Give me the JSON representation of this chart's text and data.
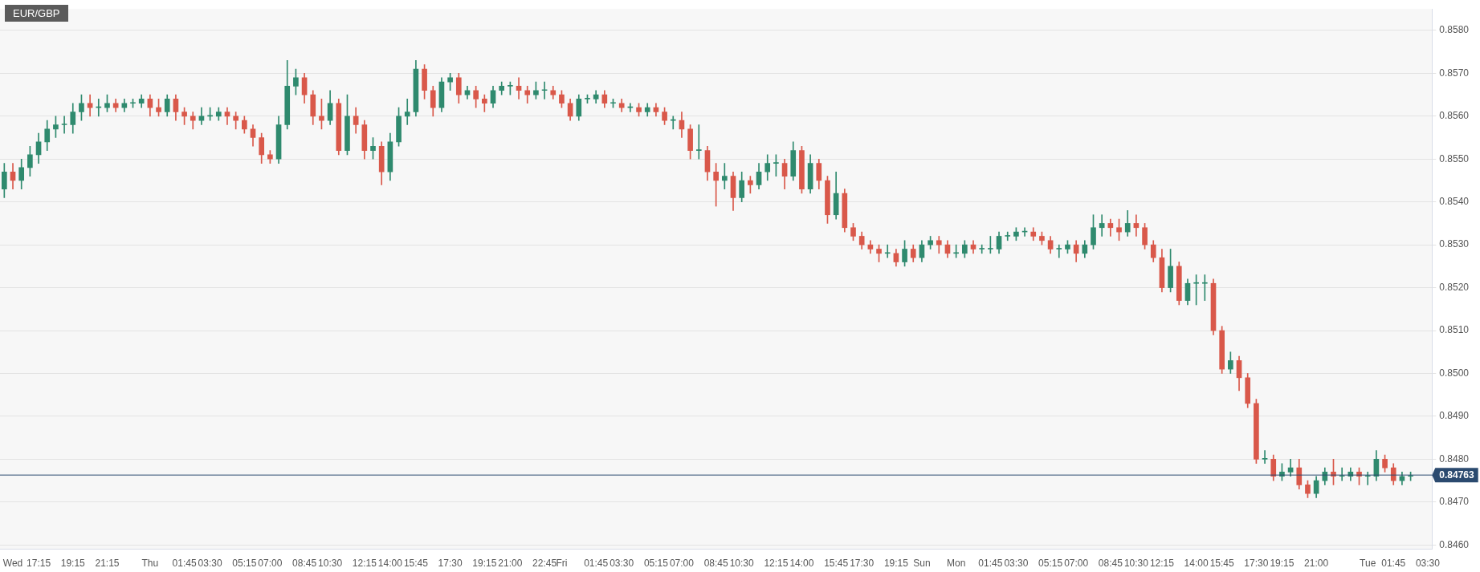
{
  "chart_data": {
    "type": "candlestick",
    "title": "EUR/GBP",
    "categories": [
      null,
      "Wed",
      null,
      null,
      "17:15",
      null,
      null,
      null,
      "19:15",
      null,
      null,
      null,
      "21:15",
      null,
      null,
      null,
      null,
      "Thu",
      null,
      null,
      null,
      "01:45",
      null,
      null,
      "03:30",
      null,
      null,
      null,
      "05:15",
      null,
      null,
      "07:00",
      null,
      null,
      null,
      "08:45",
      null,
      null,
      "10:30",
      null,
      null,
      null,
      "12:15",
      null,
      null,
      "14:00",
      null,
      null,
      "15:45",
      null,
      null,
      null,
      "17:30",
      null,
      null,
      null,
      "19:15",
      null,
      null,
      "21:00",
      null,
      null,
      null,
      "22:45",
      null,
      "Fri",
      null,
      null,
      null,
      "01:45",
      null,
      null,
      "03:30",
      null,
      null,
      null,
      "05:15",
      null,
      null,
      "07:00",
      null,
      null,
      null,
      "08:45",
      null,
      null,
      "10:30",
      null,
      null,
      null,
      "12:15",
      null,
      null,
      "14:00",
      null,
      null,
      null,
      "15:45",
      null,
      null,
      "17:30",
      null,
      null,
      null,
      "19:15",
      null,
      null,
      "Sun",
      null,
      null,
      null,
      "Mon",
      null,
      null,
      null,
      "01:45",
      null,
      null,
      "03:30",
      null,
      null,
      null,
      "05:15",
      null,
      null,
      "07:00",
      null,
      null,
      null,
      "08:45",
      null,
      null,
      "10:30",
      null,
      null,
      "12:15",
      null,
      null,
      null,
      "14:00",
      null,
      null,
      "15:45",
      null,
      null,
      null,
      "17:30",
      null,
      null,
      "19:15",
      null,
      null,
      null,
      "21:00",
      null,
      null,
      null,
      null,
      null,
      "Tue",
      null,
      null,
      "01:45",
      null,
      null,
      null,
      "03:30"
    ],
    "ohlc": [
      [
        0.8543,
        0.8549,
        0.8541,
        0.8547
      ],
      [
        0.8547,
        0.8549,
        0.8543,
        0.8545
      ],
      [
        0.8545,
        0.855,
        0.8543,
        0.8548
      ],
      [
        0.8548,
        0.8553,
        0.8546,
        0.8551
      ],
      [
        0.8551,
        0.8556,
        0.8549,
        0.8554
      ],
      [
        0.8554,
        0.8559,
        0.8552,
        0.8557
      ],
      [
        0.8557,
        0.856,
        0.8555,
        0.8558
      ],
      [
        0.8558,
        0.856,
        0.8556,
        0.8558
      ],
      [
        0.8558,
        0.8563,
        0.8556,
        0.8561
      ],
      [
        0.8561,
        0.8565,
        0.8559,
        0.8563
      ],
      [
        0.8563,
        0.8565,
        0.856,
        0.8562
      ],
      [
        0.8562,
        0.8564,
        0.856,
        0.8562
      ],
      [
        0.8562,
        0.8565,
        0.8561,
        0.8563
      ],
      [
        0.8563,
        0.8564,
        0.8561,
        0.8562
      ],
      [
        0.8562,
        0.8564,
        0.8561,
        0.8563
      ],
      [
        0.8563,
        0.8564,
        0.8562,
        0.8563
      ],
      [
        0.8563,
        0.8565,
        0.8562,
        0.8564
      ],
      [
        0.8564,
        0.8565,
        0.856,
        0.8562
      ],
      [
        0.8562,
        0.8564,
        0.856,
        0.8561
      ],
      [
        0.8561,
        0.8565,
        0.856,
        0.8564
      ],
      [
        0.8564,
        0.8565,
        0.8559,
        0.8561
      ],
      [
        0.8561,
        0.8562,
        0.8558,
        0.856
      ],
      [
        0.856,
        0.8561,
        0.8557,
        0.8559
      ],
      [
        0.8559,
        0.8562,
        0.8558,
        0.856
      ],
      [
        0.856,
        0.8562,
        0.8559,
        0.856
      ],
      [
        0.856,
        0.8562,
        0.8559,
        0.8561
      ],
      [
        0.8561,
        0.8562,
        0.8558,
        0.856
      ],
      [
        0.856,
        0.8561,
        0.8557,
        0.8559
      ],
      [
        0.8559,
        0.856,
        0.8556,
        0.8557
      ],
      [
        0.8557,
        0.8558,
        0.8553,
        0.8555
      ],
      [
        0.8555,
        0.8556,
        0.8549,
        0.8551
      ],
      [
        0.8551,
        0.8552,
        0.8549,
        0.855
      ],
      [
        0.855,
        0.856,
        0.8549,
        0.8558
      ],
      [
        0.8558,
        0.8573,
        0.8557,
        0.8567
      ],
      [
        0.8567,
        0.8571,
        0.8565,
        0.8569
      ],
      [
        0.8569,
        0.857,
        0.8563,
        0.8565
      ],
      [
        0.8565,
        0.8566,
        0.8558,
        0.856
      ],
      [
        0.856,
        0.8564,
        0.8557,
        0.8559
      ],
      [
        0.8559,
        0.8566,
        0.8558,
        0.8563
      ],
      [
        0.8563,
        0.8564,
        0.8551,
        0.8552
      ],
      [
        0.8552,
        0.8565,
        0.8551,
        0.856
      ],
      [
        0.856,
        0.8562,
        0.8556,
        0.8558
      ],
      [
        0.8558,
        0.8559,
        0.855,
        0.8552
      ],
      [
        0.8552,
        0.8555,
        0.855,
        0.8553
      ],
      [
        0.8553,
        0.8554,
        0.8544,
        0.8547
      ],
      [
        0.8547,
        0.8556,
        0.8545,
        0.8554
      ],
      [
        0.8554,
        0.8562,
        0.8553,
        0.856
      ],
      [
        0.856,
        0.8564,
        0.8558,
        0.8561
      ],
      [
        0.8561,
        0.8573,
        0.856,
        0.8571
      ],
      [
        0.8571,
        0.8572,
        0.8564,
        0.8566
      ],
      [
        0.8566,
        0.8567,
        0.856,
        0.8562
      ],
      [
        0.8562,
        0.8569,
        0.8561,
        0.8568
      ],
      [
        0.8568,
        0.857,
        0.8566,
        0.8569
      ],
      [
        0.8569,
        0.857,
        0.8563,
        0.8565
      ],
      [
        0.8565,
        0.8567,
        0.8564,
        0.8566
      ],
      [
        0.8566,
        0.8567,
        0.8562,
        0.8564
      ],
      [
        0.8564,
        0.8565,
        0.8561,
        0.8563
      ],
      [
        0.8563,
        0.8567,
        0.8562,
        0.8566
      ],
      [
        0.8566,
        0.8568,
        0.8565,
        0.8567
      ],
      [
        0.8567,
        0.8568,
        0.8565,
        0.8567
      ],
      [
        0.8567,
        0.8569,
        0.8564,
        0.8566
      ],
      [
        0.8566,
        0.8567,
        0.8563,
        0.8565
      ],
      [
        0.8565,
        0.8568,
        0.8564,
        0.8566
      ],
      [
        0.8566,
        0.8568,
        0.8564,
        0.8566
      ],
      [
        0.8566,
        0.8567,
        0.8564,
        0.8565
      ],
      [
        0.8565,
        0.8566,
        0.8562,
        0.8563
      ],
      [
        0.8563,
        0.8564,
        0.8559,
        0.856
      ],
      [
        0.856,
        0.8565,
        0.8559,
        0.8564
      ],
      [
        0.8564,
        0.8565,
        0.8563,
        0.8564
      ],
      [
        0.8564,
        0.8566,
        0.8563,
        0.8565
      ],
      [
        0.8565,
        0.8566,
        0.8562,
        0.8563
      ],
      [
        0.8563,
        0.8564,
        0.8562,
        0.8563
      ],
      [
        0.8563,
        0.8564,
        0.8561,
        0.8562
      ],
      [
        0.8562,
        0.8563,
        0.8561,
        0.8562
      ],
      [
        0.8562,
        0.8563,
        0.856,
        0.8561
      ],
      [
        0.8561,
        0.8563,
        0.856,
        0.8562
      ],
      [
        0.8562,
        0.8563,
        0.856,
        0.8561
      ],
      [
        0.8561,
        0.8562,
        0.8558,
        0.8559
      ],
      [
        0.8559,
        0.856,
        0.8557,
        0.8559
      ],
      [
        0.8559,
        0.8561,
        0.8555,
        0.8557
      ],
      [
        0.8557,
        0.8558,
        0.855,
        0.8552
      ],
      [
        0.8552,
        0.8558,
        0.855,
        0.8552
      ],
      [
        0.8552,
        0.8553,
        0.8545,
        0.8547
      ],
      [
        0.8547,
        0.8549,
        0.8539,
        0.8545
      ],
      [
        0.8545,
        0.8549,
        0.8543,
        0.8546
      ],
      [
        0.8546,
        0.8547,
        0.8538,
        0.8541
      ],
      [
        0.8541,
        0.8547,
        0.854,
        0.8545
      ],
      [
        0.8545,
        0.8546,
        0.8542,
        0.8544
      ],
      [
        0.8544,
        0.8549,
        0.8543,
        0.8547
      ],
      [
        0.8547,
        0.8551,
        0.8545,
        0.8549
      ],
      [
        0.8549,
        0.8551,
        0.8546,
        0.8549
      ],
      [
        0.8549,
        0.855,
        0.8543,
        0.8546
      ],
      [
        0.8546,
        0.8554,
        0.8545,
        0.8552
      ],
      [
        0.8552,
        0.8553,
        0.8542,
        0.8543
      ],
      [
        0.8543,
        0.8551,
        0.8542,
        0.8549
      ],
      [
        0.8549,
        0.855,
        0.8543,
        0.8545
      ],
      [
        0.8545,
        0.8546,
        0.8535,
        0.8537
      ],
      [
        0.8537,
        0.8547,
        0.8536,
        0.8542
      ],
      [
        0.8542,
        0.8543,
        0.8533,
        0.8534
      ],
      [
        0.8534,
        0.8535,
        0.8531,
        0.8532
      ],
      [
        0.8532,
        0.8533,
        0.8529,
        0.853
      ],
      [
        0.853,
        0.8531,
        0.8528,
        0.8529
      ],
      [
        0.8529,
        0.853,
        0.8526,
        0.8528
      ],
      [
        0.8528,
        0.853,
        0.8527,
        0.8528
      ],
      [
        0.8528,
        0.8529,
        0.8525,
        0.8526
      ],
      [
        0.8526,
        0.8531,
        0.8525,
        0.8529
      ],
      [
        0.8529,
        0.853,
        0.8526,
        0.8527
      ],
      [
        0.8527,
        0.8531,
        0.8526,
        0.853
      ],
      [
        0.853,
        0.8532,
        0.8529,
        0.8531
      ],
      [
        0.8531,
        0.8532,
        0.8528,
        0.853
      ],
      [
        0.853,
        0.8531,
        0.8527,
        0.8528
      ],
      [
        0.8528,
        0.853,
        0.8527,
        0.8528
      ],
      [
        0.8528,
        0.8531,
        0.8527,
        0.853
      ],
      [
        0.853,
        0.8531,
        0.8528,
        0.8529
      ],
      [
        0.8529,
        0.853,
        0.8528,
        0.8529
      ],
      [
        0.8529,
        0.8532,
        0.8528,
        0.8529
      ],
      [
        0.8529,
        0.8533,
        0.8528,
        0.8532
      ],
      [
        0.8532,
        0.8533,
        0.8531,
        0.8532
      ],
      [
        0.8532,
        0.8534,
        0.8531,
        0.8533
      ],
      [
        0.8533,
        0.8534,
        0.8532,
        0.8533
      ],
      [
        0.8533,
        0.8534,
        0.8531,
        0.8532
      ],
      [
        0.8532,
        0.8533,
        0.853,
        0.8531
      ],
      [
        0.8531,
        0.8532,
        0.8528,
        0.8529
      ],
      [
        0.8529,
        0.853,
        0.8527,
        0.8529
      ],
      [
        0.8529,
        0.8531,
        0.8528,
        0.853
      ],
      [
        0.853,
        0.8531,
        0.8526,
        0.8528
      ],
      [
        0.8528,
        0.8531,
        0.8527,
        0.853
      ],
      [
        0.853,
        0.8537,
        0.8529,
        0.8534
      ],
      [
        0.8534,
        0.8537,
        0.8532,
        0.8535
      ],
      [
        0.8535,
        0.8536,
        0.8532,
        0.8534
      ],
      [
        0.8534,
        0.8536,
        0.8531,
        0.8533
      ],
      [
        0.8533,
        0.8538,
        0.8532,
        0.8535
      ],
      [
        0.8535,
        0.8537,
        0.8532,
        0.8534
      ],
      [
        0.8534,
        0.8535,
        0.8529,
        0.853
      ],
      [
        0.853,
        0.8531,
        0.8526,
        0.8527
      ],
      [
        0.8527,
        0.8529,
        0.8519,
        0.852
      ],
      [
        0.852,
        0.8529,
        0.8519,
        0.8525
      ],
      [
        0.8525,
        0.8526,
        0.8516,
        0.8517
      ],
      [
        0.8517,
        0.8522,
        0.8516,
        0.8521
      ],
      [
        0.8521,
        0.8523,
        0.8516,
        0.8521
      ],
      [
        0.8521,
        0.8523,
        0.8517,
        0.8521
      ],
      [
        0.8521,
        0.8522,
        0.8509,
        0.851
      ],
      [
        0.851,
        0.8511,
        0.85,
        0.8501
      ],
      [
        0.8501,
        0.8505,
        0.85,
        0.8503
      ],
      [
        0.8503,
        0.8504,
        0.8496,
        0.8499
      ],
      [
        0.8499,
        0.85,
        0.8492,
        0.8493
      ],
      [
        0.8493,
        0.8494,
        0.8479,
        0.848
      ],
      [
        0.848,
        0.8482,
        0.8479,
        0.848
      ],
      [
        0.848,
        0.8481,
        0.8475,
        0.8476
      ],
      [
        0.8476,
        0.8479,
        0.8475,
        0.8477
      ],
      [
        0.8477,
        0.848,
        0.8476,
        0.8478
      ],
      [
        0.8478,
        0.848,
        0.8473,
        0.8474
      ],
      [
        0.8474,
        0.8475,
        0.8471,
        0.8472
      ],
      [
        0.8472,
        0.8476,
        0.8471,
        0.8475
      ],
      [
        0.8475,
        0.8478,
        0.8474,
        0.8477
      ],
      [
        0.8477,
        0.848,
        0.8474,
        0.8476
      ],
      [
        0.8476,
        0.8478,
        0.8475,
        0.8476
      ],
      [
        0.8476,
        0.8478,
        0.8475,
        0.8477
      ],
      [
        0.8477,
        0.8478,
        0.8474,
        0.8476
      ],
      [
        0.8476,
        0.8477,
        0.8474,
        0.8476
      ],
      [
        0.8476,
        0.8482,
        0.8475,
        0.848
      ],
      [
        0.848,
        0.8481,
        0.8477,
        0.8478
      ],
      [
        0.8478,
        0.8479,
        0.8474,
        0.8475
      ],
      [
        0.8475,
        0.8477,
        0.8474,
        0.8476
      ],
      [
        0.8476,
        0.8477,
        0.8475,
        0.8476
      ],
      null,
      null
    ],
    "ylim": [
      0.8459,
      0.8585
    ],
    "yticks": [
      {
        "value": 0.846,
        "label": "0.8460"
      },
      {
        "value": 0.847,
        "label": "0.8470"
      },
      {
        "value": 0.848,
        "label": "0.8480"
      },
      {
        "value": 0.849,
        "label": "0.8490"
      },
      {
        "value": 0.85,
        "label": "0.8500"
      },
      {
        "value": 0.851,
        "label": "0.8510"
      },
      {
        "value": 0.852,
        "label": "0.8520"
      },
      {
        "value": 0.853,
        "label": "0.8530"
      },
      {
        "value": 0.854,
        "label": "0.8540"
      },
      {
        "value": 0.855,
        "label": "0.8550"
      },
      {
        "value": 0.856,
        "label": "0.8560"
      },
      {
        "value": 0.857,
        "label": "0.8570"
      },
      {
        "value": 0.858,
        "label": "0.8580"
      }
    ],
    "ref_lines": [
      {
        "axis": "y",
        "value": 0.84763,
        "label": "0.84763",
        "color": "#2b4a6f"
      }
    ],
    "grid": "y",
    "legend": false
  }
}
